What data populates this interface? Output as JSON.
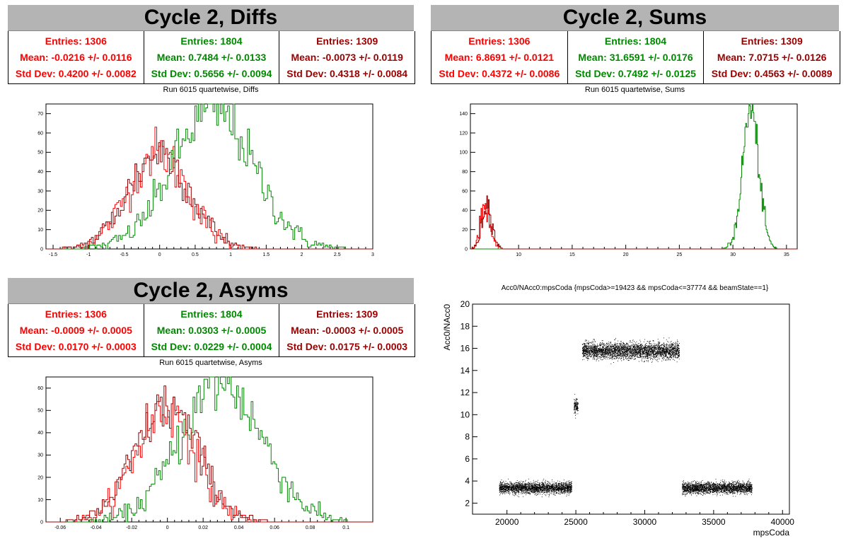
{
  "colors": {
    "red": "#ff0000",
    "green": "#008800",
    "darkred": "#990000"
  },
  "panels": {
    "diffs": {
      "title": "Cycle 2, Diffs",
      "stats": [
        {
          "entries": "Entries: 1306",
          "mean": "Mean: -0.0216 +/- 0.0116",
          "std": "Std Dev: 0.4200 +/- 0.0082"
        },
        {
          "entries": "Entries: 1804",
          "mean": "Mean: 0.7484 +/- 0.0133",
          "std": "Std Dev: 0.5656 +/- 0.0094"
        },
        {
          "entries": "Entries: 1309",
          "mean": "Mean: -0.0073 +/- 0.0119",
          "std": "Std Dev: 0.4318 +/- 0.0084"
        }
      ],
      "plot_title": "Run 6015 quartetwise, Diffs"
    },
    "sums": {
      "title": "Cycle 2, Sums",
      "stats": [
        {
          "entries": "Entries: 1306",
          "mean": "Mean: 6.8691 +/- 0.0121",
          "std": "Std Dev: 0.4372 +/- 0.0086"
        },
        {
          "entries": "Entries: 1804",
          "mean": "Mean: 31.6591 +/- 0.0176",
          "std": "Std Dev: 0.7492 +/- 0.0125"
        },
        {
          "entries": "Entries: 1309",
          "mean": "Mean: 7.0715 +/- 0.0126",
          "std": "Std Dev: 0.4563 +/- 0.0089"
        }
      ],
      "plot_title": "Run 6015 quartetwise, Sums"
    },
    "asyms": {
      "title": "Cycle 2, Asyms",
      "stats": [
        {
          "entries": "Entries: 1306",
          "mean": "Mean: -0.0009 +/- 0.0005",
          "std": "Std Dev: 0.0170 +/- 0.0003"
        },
        {
          "entries": "Entries: 1804",
          "mean": "Mean: 0.0303 +/- 0.0005",
          "std": "Std Dev: 0.0229 +/- 0.0004"
        },
        {
          "entries": "Entries: 1309",
          "mean": "Mean: -0.0003 +/- 0.0005",
          "std": "Std Dev: 0.0175 +/- 0.0003"
        }
      ],
      "plot_title": "Run 6015 quartetwise, Asyms"
    },
    "scatter": {
      "plot_title": "Acc0/NAcc0:mpsCoda {mpsCoda>=19423 && mpsCoda<=37774 && beamState==1}"
    }
  },
  "chart_data": [
    {
      "type": "histogram",
      "title": "Run 6015 quartetwise, Diffs",
      "xlim": [
        -1.6,
        3.0
      ],
      "ylim": [
        0,
        75
      ],
      "xticks": [
        -1.5,
        -1,
        -0.5,
        0,
        0.5,
        1,
        1.5,
        2,
        2.5,
        3
      ],
      "xticklabels": [
        "-1.5",
        "-1",
        "-0.5",
        "0",
        "0.5",
        "1",
        "1.5",
        "2",
        "2.5",
        "3"
      ],
      "yticks": [
        0,
        10,
        20,
        30,
        40,
        50,
        60,
        70
      ],
      "series": [
        {
          "color": "#ff0000",
          "mean": -0.0216,
          "std": 0.42,
          "peak": 50
        },
        {
          "color": "#008800",
          "mean": 0.7484,
          "std": 0.5656,
          "peak": 72
        },
        {
          "color": "#990000",
          "mean": -0.0073,
          "std": 0.4318,
          "peak": 50
        }
      ]
    },
    {
      "type": "histogram",
      "title": "Run 6015 quartetwise, Sums",
      "xlim": [
        5.5,
        36
      ],
      "ylim": [
        0,
        150
      ],
      "xticks": [
        10,
        15,
        20,
        25,
        30,
        35
      ],
      "xticklabels": [
        "10",
        "15",
        "20",
        "25",
        "30",
        "35"
      ],
      "yticks": [
        0,
        20,
        40,
        60,
        80,
        100,
        120,
        140
      ],
      "series": [
        {
          "color": "#ff0000",
          "mean": 6.8691,
          "std": 0.4372,
          "peak": 45
        },
        {
          "color": "#008800",
          "mean": 31.6591,
          "std": 0.7492,
          "peak": 145
        },
        {
          "color": "#990000",
          "mean": 7.0715,
          "std": 0.4563,
          "peak": 48
        }
      ]
    },
    {
      "type": "histogram",
      "title": "Run 6015 quartetwise, Asyms",
      "xlim": [
        -0.068,
        0.115
      ],
      "ylim": [
        0,
        65
      ],
      "xticks": [
        -0.06,
        -0.04,
        -0.02,
        0,
        0.02,
        0.04,
        0.06,
        0.08,
        0.1
      ],
      "xticklabels": [
        "-0.06",
        "-0.04",
        "-0.02",
        "0",
        "0.02",
        "0.04",
        "0.06",
        "0.08",
        "0.1"
      ],
      "yticks": [
        0,
        10,
        20,
        30,
        40,
        50,
        60
      ],
      "series": [
        {
          "color": "#ff0000",
          "mean": -0.0009,
          "std": 0.017,
          "peak": 50
        },
        {
          "color": "#008800",
          "mean": 0.0303,
          "std": 0.0229,
          "peak": 62
        },
        {
          "color": "#990000",
          "mean": -0.0003,
          "std": 0.0175,
          "peak": 52
        }
      ]
    },
    {
      "type": "scatter",
      "title": "Acc0/NAcc0:mpsCoda {mpsCoda>=19423 && mpsCoda<=37774 && beamState==1}",
      "xlabel": "mpsCoda",
      "ylabel": "Acc0/NAcc0",
      "xlim": [
        17500,
        40500
      ],
      "ylim": [
        1,
        20
      ],
      "xticks": [
        20000,
        25000,
        30000,
        35000,
        40000
      ],
      "xticklabels": [
        "20000",
        "25000",
        "30000",
        "35000",
        "40000"
      ],
      "yticks": [
        2,
        4,
        6,
        8,
        10,
        12,
        14,
        16,
        18,
        20
      ],
      "yticklabels": [
        "2",
        "4",
        "6",
        "8",
        "10",
        "12",
        "14",
        "16",
        "18",
        "20"
      ],
      "clusters": [
        {
          "x": [
            19423,
            24700
          ],
          "y_center": 3.4,
          "y_spread": 0.45
        },
        {
          "x": [
            24850,
            25150
          ],
          "y_center": 10.8,
          "y_spread": 0.6
        },
        {
          "x": [
            25450,
            32500
          ],
          "y_center": 15.8,
          "y_spread": 0.65
        },
        {
          "x": [
            32700,
            37774
          ],
          "y_center": 3.4,
          "y_spread": 0.45
        }
      ]
    }
  ]
}
